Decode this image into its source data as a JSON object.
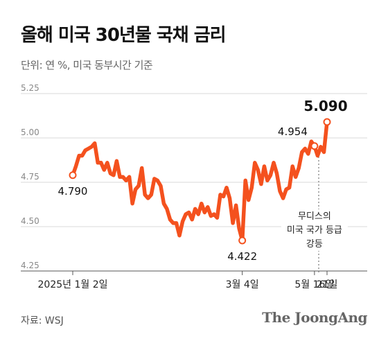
{
  "header": {
    "title": "올해 미국 30년물 국채 금리",
    "subtitle": "단위: 연 %, 미국 동부시간 기준"
  },
  "footer": {
    "source": "자료: WSJ",
    "brand": "The JoongAng"
  },
  "chart_data": {
    "type": "line",
    "title": "올해 미국 30년물 국채 금리",
    "ylim": [
      4.25,
      5.25
    ],
    "yticks": [
      "5.25",
      "5.00",
      "4.75",
      "4.50",
      "4.25"
    ],
    "xticks": [
      "2025년 1월 2일",
      "3월 4일",
      "5월 16일",
      "21일"
    ],
    "grid": true,
    "colors": {
      "line": "#f4511e",
      "grid": "#d9d9d9",
      "marker_fill": "#ffffff"
    },
    "series": [
      {
        "values": [
          4.79,
          4.84,
          4.9,
          4.9,
          4.93,
          4.94,
          4.95,
          4.97,
          4.86,
          4.86,
          4.82,
          4.86,
          4.8,
          4.79,
          4.87,
          4.78,
          4.78,
          4.76,
          4.78,
          4.63,
          4.71,
          4.73,
          4.83,
          4.68,
          4.66,
          4.68,
          4.77,
          4.76,
          4.73,
          4.63,
          4.6,
          4.54,
          4.52,
          4.52,
          4.45,
          4.53,
          4.57,
          4.58,
          4.54,
          4.6,
          4.57,
          4.63,
          4.58,
          4.61,
          4.56,
          4.57,
          4.55,
          4.68,
          4.67,
          4.72,
          4.66,
          4.52,
          4.62,
          4.49,
          4.422,
          4.76,
          4.65,
          4.72,
          4.86,
          4.82,
          4.74,
          4.84,
          4.76,
          4.79,
          4.86,
          4.8,
          4.7,
          4.66,
          4.71,
          4.72,
          4.84,
          4.78,
          4.83,
          4.92,
          4.94,
          4.91,
          4.98,
          4.954,
          4.9,
          4.95,
          4.92,
          5.09
        ]
      }
    ],
    "annotations": [
      {
        "label": "4.790"
      },
      {
        "label": "4.422"
      },
      {
        "label": "4.954"
      },
      {
        "label": "5.090"
      }
    ],
    "note": [
      "무디스의",
      "미국 국가 등급",
      "강등"
    ]
  }
}
